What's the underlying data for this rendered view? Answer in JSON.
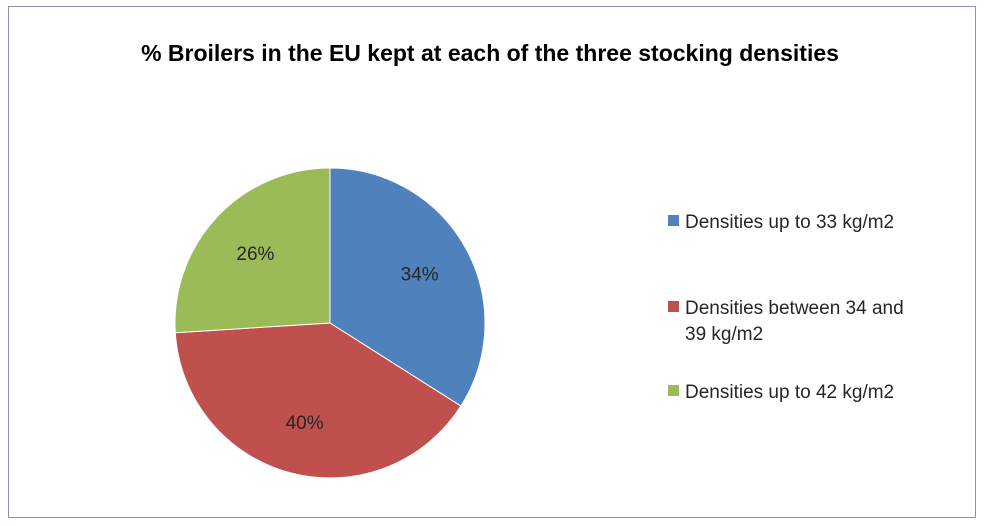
{
  "chart_data": {
    "type": "pie",
    "title": "% Broilers in the EU kept at each of the three stocking densities",
    "categories": [
      "Densities up to 33 kg/m2",
      "Densities between 34 and 39 kg/m2",
      "Densities up to 42 kg/m2"
    ],
    "values": [
      34,
      40,
      26
    ],
    "data_labels": [
      "34%",
      "40%",
      "26%"
    ],
    "colors": [
      "#4f81bd",
      "#c0504d",
      "#9bbb59"
    ],
    "legend": {
      "placement": "right",
      "entries": [
        "Densities up to 33 kg/m2",
        "Densities between 34 and 39 kg/m2",
        "Densities up to 42 kg/m2"
      ]
    },
    "start_angle_deg": 0,
    "direction": "clockwise"
  }
}
